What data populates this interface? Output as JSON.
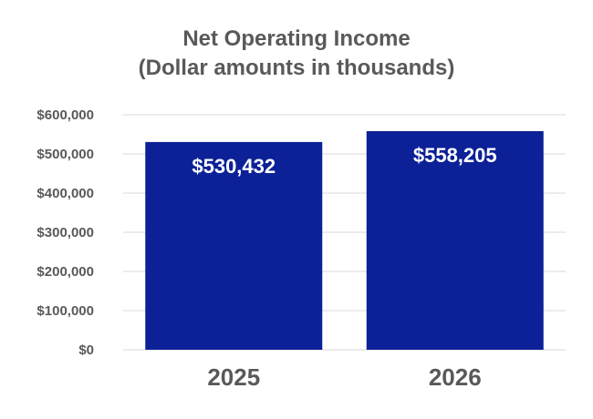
{
  "chart_data": {
    "type": "bar",
    "title": "Net Operating Income",
    "subtitle": "(Dollar amounts in thousands)",
    "categories": [
      "2025",
      "2026"
    ],
    "values": [
      530432,
      558205
    ],
    "data_labels": [
      "$530,432",
      "$558,205"
    ],
    "ylim": [
      0,
      600000
    ],
    "yticks": [
      0,
      100000,
      200000,
      300000,
      400000,
      500000,
      600000
    ],
    "ytick_labels": [
      "$0",
      "$100,000",
      "$200,000",
      "$300,000",
      "$400,000",
      "$500,000",
      "$600,000"
    ],
    "xlabel": "",
    "ylabel": "",
    "grid": true,
    "legend": "none",
    "bar_color": "#0c2197",
    "label_color": "#ffffff",
    "text_color": "#595959",
    "grid_color": "#e6e6e6"
  }
}
